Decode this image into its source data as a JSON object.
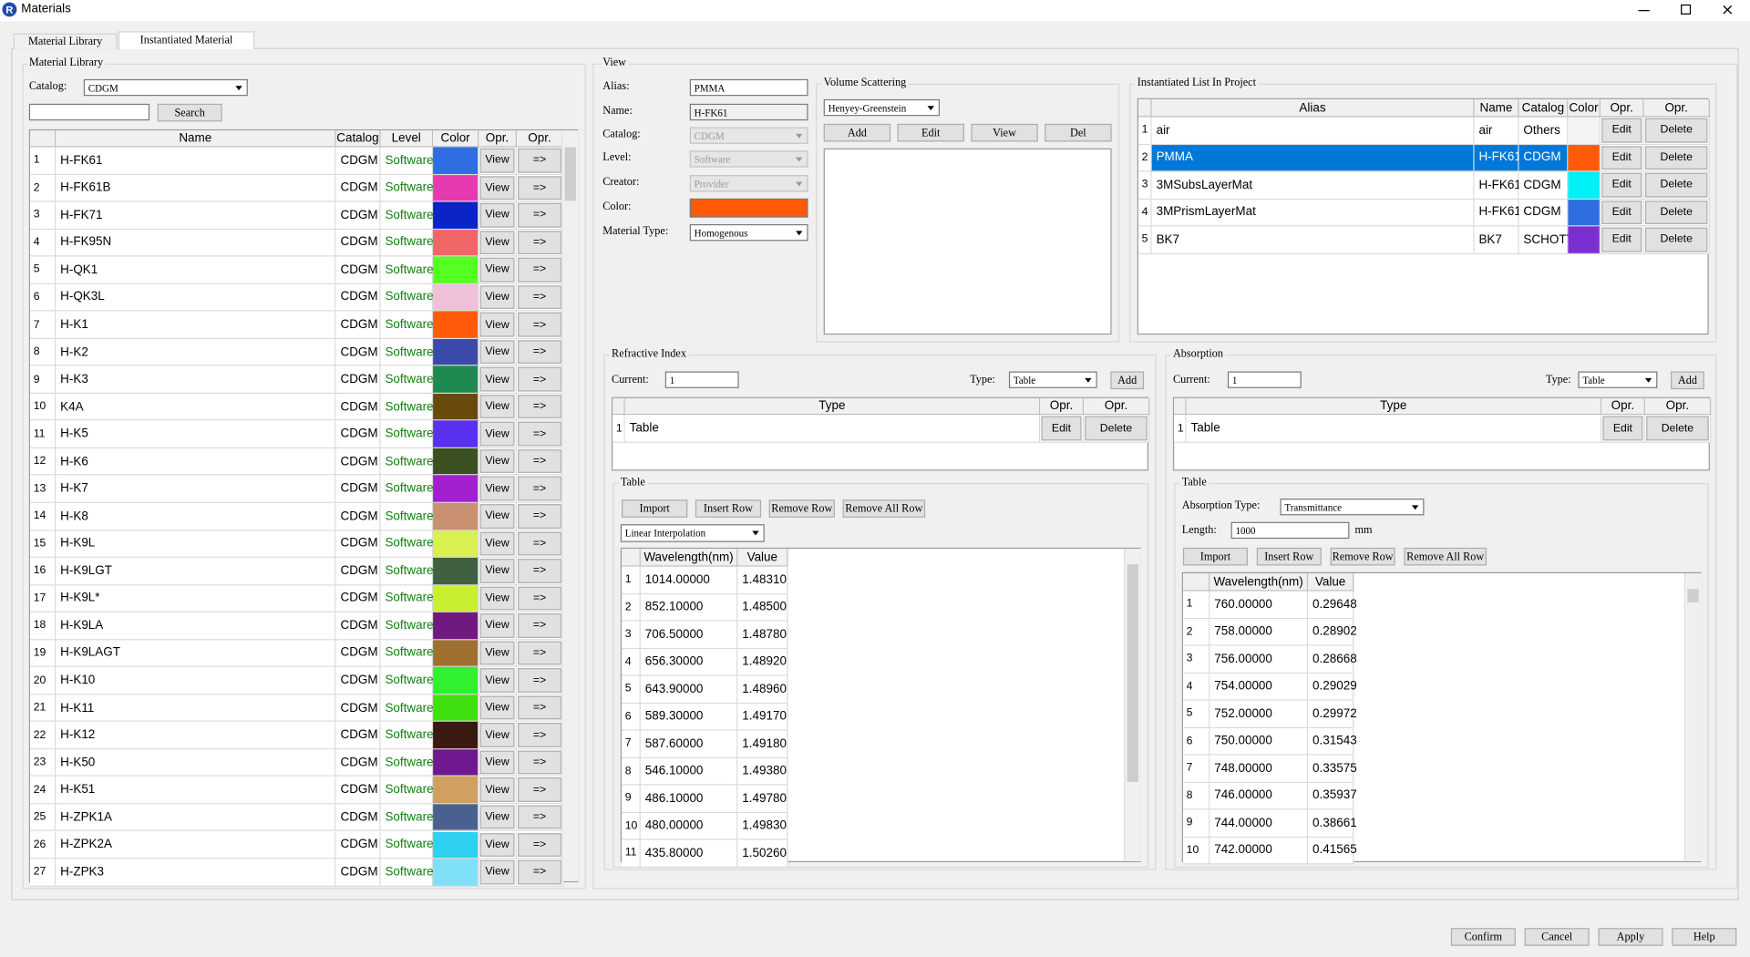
{
  "window": {
    "icon": "R",
    "title": "Materials"
  },
  "tabs": [
    "Material Library",
    "Instantiated Material"
  ],
  "active_tab": 1,
  "library": {
    "group": "Material Library",
    "catalog_label": "Catalog:",
    "catalog": "CDGM",
    "search_button": "Search",
    "columns": [
      "Name",
      "Catalog",
      "Level",
      "Color",
      "Opr.",
      "Opr."
    ],
    "rows": [
      [
        1,
        "H-FK61",
        "CDGM",
        "Software",
        "#2f6ee0",
        "View",
        "=>"
      ],
      [
        2,
        "H-FK61B",
        "CDGM",
        "Software",
        "#e83ab0",
        "View",
        "=>"
      ],
      [
        3,
        "H-FK71",
        "CDGM",
        "Software",
        "#0a24c8",
        "View",
        "=>"
      ],
      [
        4,
        "H-FK95N",
        "CDGM",
        "Software",
        "#f06666",
        "View",
        "=>"
      ],
      [
        5,
        "H-QK1",
        "CDGM",
        "Software",
        "#55ff22",
        "View",
        "=>"
      ],
      [
        6,
        "H-QK3L",
        "CDGM",
        "Software",
        "#f0c0d8",
        "View",
        "=>"
      ],
      [
        7,
        "H-K1",
        "CDGM",
        "Software",
        "#ff5a0a",
        "View",
        "=>"
      ],
      [
        8,
        "H-K2",
        "CDGM",
        "Software",
        "#3b4aa8",
        "View",
        "=>"
      ],
      [
        9,
        "H-K3",
        "CDGM",
        "Software",
        "#1e8a50",
        "View",
        "=>"
      ],
      [
        10,
        "K4A",
        "CDGM",
        "Software",
        "#6a4a0a",
        "View",
        "=>"
      ],
      [
        11,
        "H-K5",
        "CDGM",
        "Software",
        "#5a30f0",
        "View",
        "=>"
      ],
      [
        12,
        "H-K6",
        "CDGM",
        "Software",
        "#3a5020",
        "View",
        "=>"
      ],
      [
        13,
        "H-K7",
        "CDGM",
        "Software",
        "#a020d0",
        "View",
        "=>"
      ],
      [
        14,
        "H-K8",
        "CDGM",
        "Software",
        "#c89070",
        "View",
        "=>"
      ],
      [
        15,
        "H-K9L",
        "CDGM",
        "Software",
        "#d8f050",
        "View",
        "=>"
      ],
      [
        16,
        "H-K9LGT",
        "CDGM",
        "Software",
        "#406040",
        "View",
        "=>"
      ],
      [
        17,
        "H-K9L*",
        "CDGM",
        "Software",
        "#c8f030",
        "View",
        "=>"
      ],
      [
        18,
        "H-K9LA",
        "CDGM",
        "Software",
        "#701a80",
        "View",
        "=>"
      ],
      [
        19,
        "H-K9LAGT",
        "CDGM",
        "Software",
        "#a07030",
        "View",
        "=>"
      ],
      [
        20,
        "H-K10",
        "CDGM",
        "Software",
        "#30f030",
        "View",
        "=>"
      ],
      [
        21,
        "H-K11",
        "CDGM",
        "Software",
        "#40e010",
        "View",
        "=>"
      ],
      [
        22,
        "H-K12",
        "CDGM",
        "Software",
        "#3a1a10",
        "View",
        "=>"
      ],
      [
        23,
        "H-K50",
        "CDGM",
        "Software",
        "#701890",
        "View",
        "=>"
      ],
      [
        24,
        "H-K51",
        "CDGM",
        "Software",
        "#d0a060",
        "View",
        "=>"
      ],
      [
        25,
        "H-ZPK1A",
        "CDGM",
        "Software",
        "#4a6090",
        "View",
        "=>"
      ],
      [
        26,
        "H-ZPK2A",
        "CDGM",
        "Software",
        "#30d0f0",
        "View",
        "=>"
      ],
      [
        27,
        "H-ZPK3",
        "CDGM",
        "Software",
        "#80e0f8",
        "View",
        "=>"
      ]
    ]
  },
  "view": {
    "group": "View",
    "fields": [
      {
        "label": "Alias:",
        "value": "PMMA",
        "kind": "input"
      },
      {
        "label": "Name:",
        "value": "H-FK61",
        "kind": "readonly"
      },
      {
        "label": "Catalog:",
        "value": "CDGM",
        "kind": "disabled-combo"
      },
      {
        "label": "Level:",
        "value": "Software",
        "kind": "disabled-combo"
      },
      {
        "label": "Creator:",
        "value": "Provider",
        "kind": "disabled-combo"
      },
      {
        "label": "Color:",
        "color": "#ff5a0a",
        "kind": "color"
      },
      {
        "label": "Material Type:",
        "value": "Homogenous",
        "kind": "combo"
      }
    ]
  },
  "volume_scattering": {
    "group": "Volume Scattering",
    "model": "Henyey-Greenstein",
    "buttons": [
      "Add",
      "Edit",
      "View",
      "Del"
    ]
  },
  "instantiated": {
    "group": "Instantiated List In Project",
    "columns": [
      "Alias",
      "Name",
      "Catalog",
      "Color",
      "Opr.",
      "Opr."
    ],
    "selected_row": 1,
    "rows": [
      [
        1,
        "air",
        "air",
        "Others",
        "#f4f4f4",
        "Edit",
        "Delete"
      ],
      [
        2,
        "PMMA",
        "H-FK61",
        "CDGM",
        "#ff5a0a",
        "Edit",
        "Delete"
      ],
      [
        3,
        "3MSubsLayerMat",
        "H-FK61",
        "CDGM",
        "#00f0f8",
        "Edit",
        "Delete"
      ],
      [
        4,
        "3MPrismLayerMat",
        "H-FK61",
        "CDGM",
        "#2f6ee0",
        "Edit",
        "Delete"
      ],
      [
        5,
        "BK7",
        "BK7",
        "SCHOTT",
        "#7a30d0",
        "Edit",
        "Delete"
      ]
    ]
  },
  "refractive_index": {
    "group": "Refractive Index",
    "current_label": "Current:",
    "current": 1,
    "type_label": "Type:",
    "type": "Table",
    "add": "Add",
    "columns": [
      "Type",
      "Opr.",
      "Opr."
    ],
    "rows": [
      [
        1,
        "Table",
        "Edit",
        "Delete"
      ]
    ],
    "table": {
      "group": "Table",
      "buttons": [
        "Import",
        "Insert Row",
        "Remove Row",
        "Remove All Row"
      ],
      "interpolation": "Linear Interpolation",
      "columns": [
        "Wavelength(nm)",
        "Value"
      ],
      "rows": [
        [
          1,
          "1014.00000",
          "1.48310"
        ],
        [
          2,
          "852.10000",
          "1.48500"
        ],
        [
          3,
          "706.50000",
          "1.48780"
        ],
        [
          4,
          "656.30000",
          "1.48920"
        ],
        [
          5,
          "643.90000",
          "1.48960"
        ],
        [
          6,
          "589.30000",
          "1.49170"
        ],
        [
          7,
          "587.60000",
          "1.49180"
        ],
        [
          8,
          "546.10000",
          "1.49380"
        ],
        [
          9,
          "486.10000",
          "1.49780"
        ],
        [
          10,
          "480.00000",
          "1.49830"
        ],
        [
          11,
          "435.80000",
          "1.50260"
        ]
      ]
    }
  },
  "absorption": {
    "group": "Absorption",
    "current_label": "Current:",
    "current": 1,
    "type_label": "Type:",
    "type": "Table",
    "add": "Add",
    "columns": [
      "Type",
      "Opr.",
      "Opr."
    ],
    "rows": [
      [
        1,
        "Table",
        "Edit",
        "Delete"
      ]
    ],
    "table": {
      "group": "Table",
      "absorption_type_label": "Absorption Type:",
      "absorption_type": "Transmittance",
      "length_label": "Length:",
      "length": 1000,
      "length_unit": "mm",
      "buttons": [
        "Import",
        "Insert Row",
        "Remove Row",
        "Remove All Row"
      ],
      "columns": [
        "Wavelength(nm)",
        "Value"
      ],
      "rows": [
        [
          1,
          "760.00000",
          "0.29648"
        ],
        [
          2,
          "758.00000",
          "0.28902"
        ],
        [
          3,
          "756.00000",
          "0.28668"
        ],
        [
          4,
          "754.00000",
          "0.29029"
        ],
        [
          5,
          "752.00000",
          "0.29972"
        ],
        [
          6,
          "750.00000",
          "0.31543"
        ],
        [
          7,
          "748.00000",
          "0.33575"
        ],
        [
          8,
          "746.00000",
          "0.35937"
        ],
        [
          9,
          "744.00000",
          "0.38661"
        ],
        [
          10,
          "742.00000",
          "0.41565"
        ]
      ]
    }
  },
  "footer": {
    "buttons": [
      "Confirm",
      "Cancel",
      "Apply",
      "Help"
    ]
  }
}
